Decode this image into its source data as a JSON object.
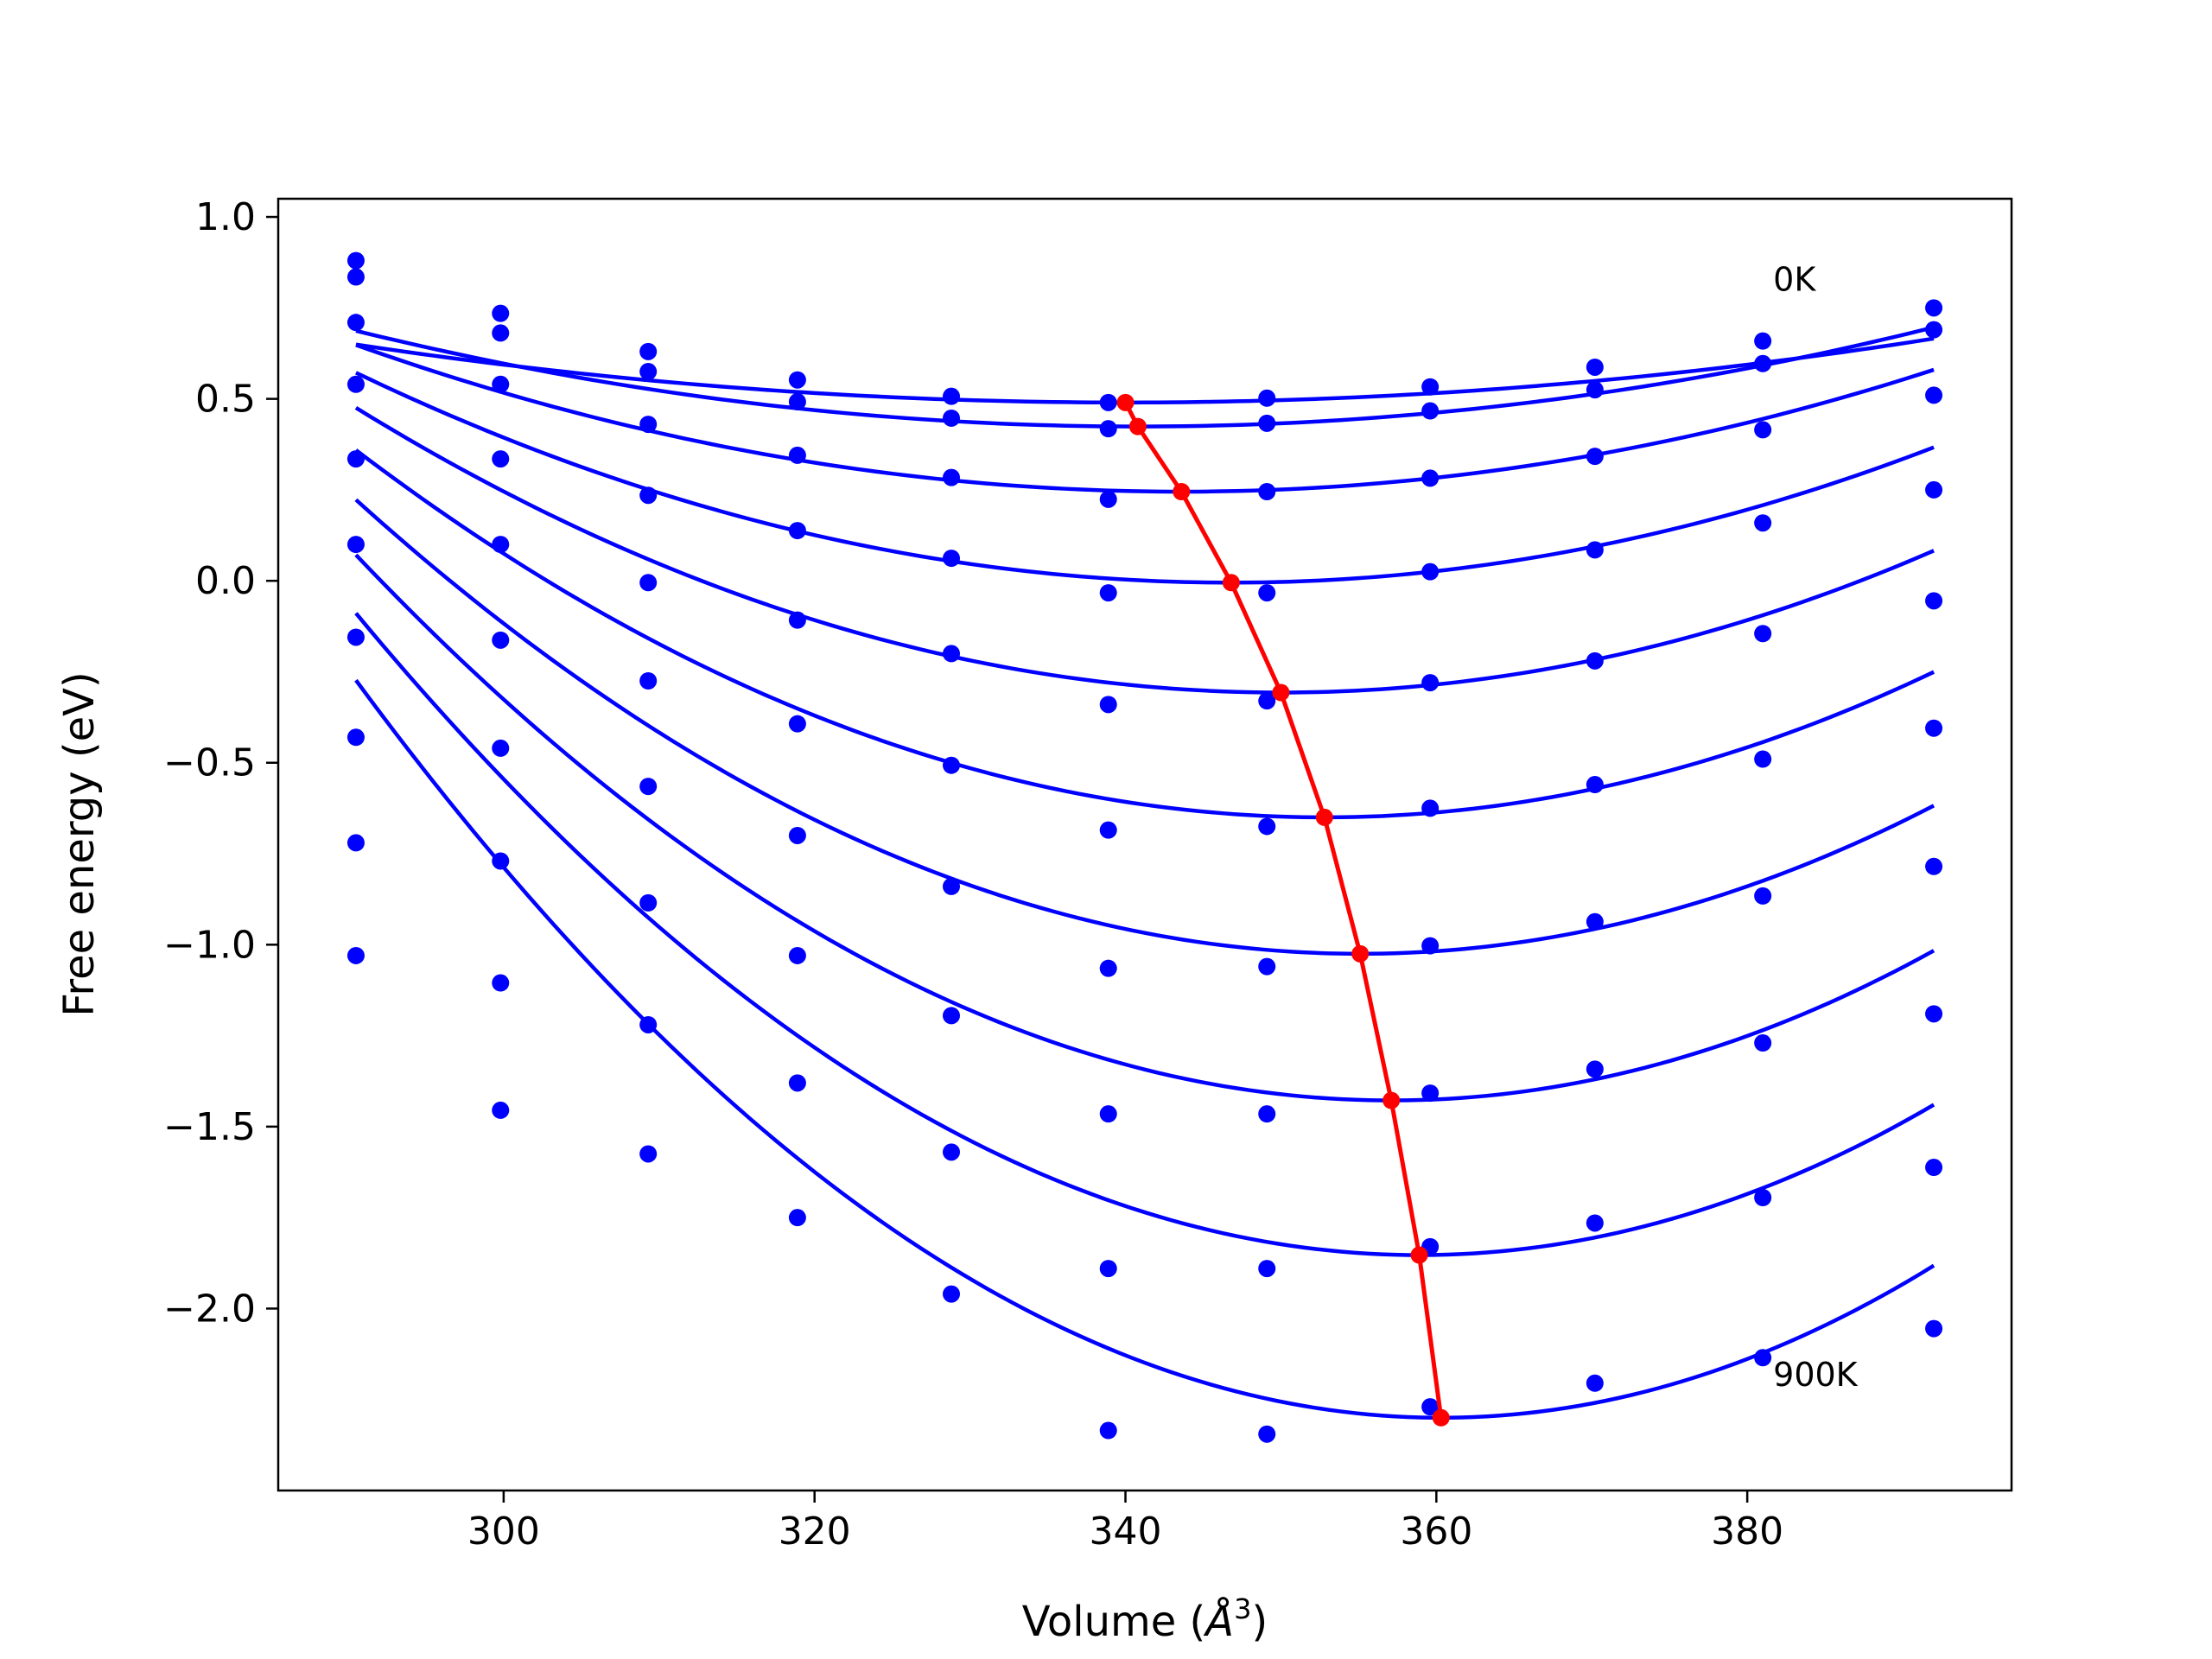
{
  "colors": {
    "series": "#0000ff",
    "equilibrium": "#ff0000",
    "axes": "#000000",
    "background": "#ffffff"
  },
  "chart_data": {
    "type": "line",
    "title": "",
    "xlabel": "Volume (",
    "xlabel_unit_symbol": "Å",
    "xlabel_unit_power": "3",
    "xlabel_close": ")",
    "ylabel": "Free energy (eV)",
    "xlim": [
      285.5,
      397
    ],
    "ylim": [
      -2.5,
      1.05
    ],
    "xticks": [
      300,
      320,
      340,
      360,
      380
    ],
    "xtick_labels": [
      "300",
      "320",
      "340",
      "360",
      "380"
    ],
    "yticks": [
      1.0,
      0.5,
      0.0,
      -0.5,
      -1.0,
      -1.5,
      -2.0
    ],
    "ytick_labels": [
      "1.0",
      "0.5",
      "0.0",
      "−0.5",
      "−1.0",
      "−1.5",
      "−2.0"
    ],
    "grid": false,
    "legend": "none",
    "annotations": [
      {
        "text": "0K",
        "x": 381.0,
        "y": 0.83
      },
      {
        "text": "900K",
        "x": 381.0,
        "y": -2.18
      }
    ],
    "x_points": [
      290.5,
      299.8,
      309.3,
      318.9,
      328.8,
      338.9,
      349.1,
      359.6,
      370.2,
      381.0,
      392.0
    ],
    "series": [
      {
        "points": [
          0.88,
          0.735,
          0.63,
          0.552,
          0.507,
          0.49,
          0.502,
          0.533,
          0.587,
          0.659,
          0.75
        ],
        "fit_vmin": 340.0,
        "fit_fmin": 0.49
      },
      {
        "points": [
          0.835,
          0.681,
          0.575,
          0.492,
          0.447,
          0.418,
          0.433,
          0.467,
          0.525,
          0.597,
          0.69
        ],
        "fit_vmin": 340.8,
        "fit_fmin": 0.424
      },
      {
        "points": [
          0.71,
          0.54,
          0.43,
          0.345,
          0.284,
          0.224,
          0.245,
          0.282,
          0.342,
          0.415,
          0.51
        ],
        "fit_vmin": 343.6,
        "fit_fmin": 0.245
      },
      {
        "points": [
          0.54,
          0.335,
          0.235,
          0.138,
          0.062,
          -0.033,
          -0.033,
          0.025,
          0.085,
          0.159,
          0.25
        ],
        "fit_vmin": 346.8,
        "fit_fmin": -0.005
      },
      {
        "points": [
          0.335,
          0.1,
          -0.005,
          -0.108,
          -0.2,
          -0.34,
          -0.33,
          -0.28,
          -0.22,
          -0.145,
          -0.055
        ],
        "fit_vmin": 350.0,
        "fit_fmin": -0.307
      },
      {
        "points": [
          0.1,
          -0.163,
          -0.275,
          -0.393,
          -0.507,
          -0.685,
          -0.675,
          -0.625,
          -0.56,
          -0.49,
          -0.405
        ],
        "fit_vmin": 352.8,
        "fit_fmin": -0.65
      },
      {
        "points": [
          -0.155,
          -0.46,
          -0.565,
          -0.7,
          -0.84,
          -1.065,
          -1.06,
          -1.003,
          -0.937,
          -0.866,
          -0.785
        ],
        "fit_vmin": 355.1,
        "fit_fmin": -1.025
      },
      {
        "points": [
          -0.43,
          -0.77,
          -0.885,
          -1.03,
          -1.195,
          -1.465,
          -1.465,
          -1.408,
          -1.342,
          -1.27,
          -1.19
        ],
        "fit_vmin": 357.1,
        "fit_fmin": -1.428
      },
      {
        "points": [
          -0.72,
          -1.105,
          -1.22,
          -1.38,
          -1.57,
          -1.89,
          -1.89,
          -1.83,
          -1.765,
          -1.695,
          -1.612
        ],
        "fit_vmin": 358.9,
        "fit_fmin": -1.853
      },
      {
        "points": [
          -1.03,
          -1.455,
          -1.575,
          -1.75,
          -1.96,
          -2.335,
          -2.345,
          -2.27,
          -2.205,
          -2.135,
          -2.055
        ],
        "fit_vmin": 360.3,
        "fit_fmin": -2.3
      }
    ],
    "equilibrium_line": {
      "x": [
        340.0,
        340.8,
        343.6,
        346.8,
        350.0,
        352.8,
        355.1,
        357.1,
        358.9,
        360.3
      ],
      "y": [
        0.49,
        0.424,
        0.245,
        -0.005,
        -0.307,
        -0.65,
        -1.025,
        -1.428,
        -1.853,
        -2.3
      ]
    },
    "fit_range": [
      290.5,
      392.0
    ],
    "fit_curvature": 6.5e-05
  }
}
